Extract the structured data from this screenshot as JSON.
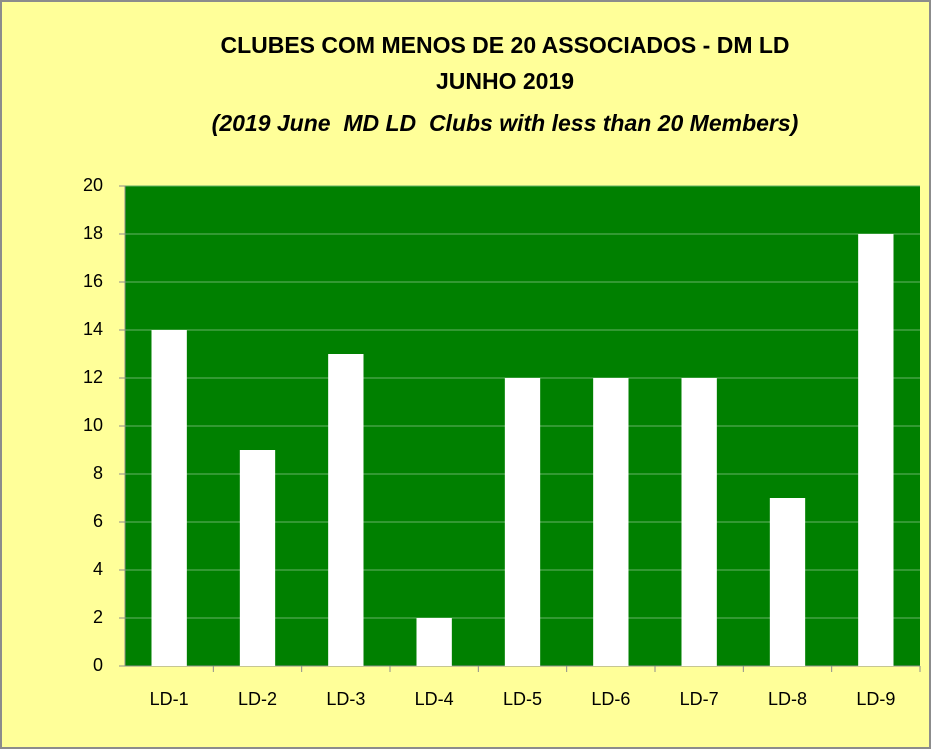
{
  "chart_data": {
    "type": "bar",
    "title": "CLUBES COM MENOS DE 20 ASSOCIADOS - DM LD",
    "subtitle": "JUNHO 2019",
    "subtitle2": "(2019 June  MD LD  Clubs with less than 20 Members)",
    "categories": [
      "LD-1",
      "LD-2",
      "LD-3",
      "LD-4",
      "LD-5",
      "LD-6",
      "LD-7",
      "LD-8",
      "LD-9"
    ],
    "values": [
      14,
      9,
      13,
      2,
      12,
      12,
      12,
      7,
      18
    ],
    "color": "#ffffff",
    "plot_background": "#008000",
    "ylim": [
      0,
      20
    ],
    "yticks": [
      0,
      2,
      4,
      6,
      8,
      10,
      12,
      14,
      16,
      18,
      20
    ],
    "grid": true
  }
}
